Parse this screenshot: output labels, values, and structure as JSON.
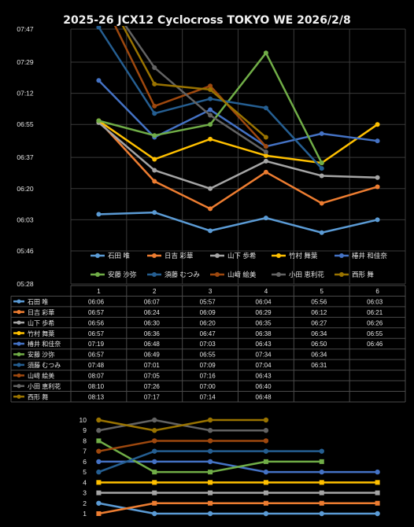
{
  "chart_data": [
    {
      "type": "line",
      "title": "2025-26 JCX12 Cyclocross TOKYO WE 2026/2/8",
      "y_unit": "mm:ss",
      "yticks": [
        "05:28",
        "05:46",
        "06:03",
        "06:20",
        "06:37",
        "06:55",
        "07:12",
        "07:29",
        "07:47"
      ],
      "ylim": [
        "05:28",
        "07:47"
      ],
      "categories": [
        "1",
        "2",
        "3",
        "4",
        "5",
        "6"
      ],
      "grid": true,
      "legend_position": "bottom",
      "series": [
        {
          "name": "石田 唯",
          "color": "#5b9bd5",
          "values": [
            "06:06",
            "06:07",
            "05:57",
            "06:04",
            "05:56",
            "06:03"
          ]
        },
        {
          "name": "日吉 彩華",
          "color": "#ed7d31",
          "values": [
            "06:57",
            "06:24",
            "06:09",
            "06:29",
            "06:12",
            "06:21"
          ]
        },
        {
          "name": "山下 歩希",
          "color": "#a5a5a5",
          "values": [
            "06:56",
            "06:30",
            "06:20",
            "06:35",
            "06:27",
            "06:26"
          ]
        },
        {
          "name": "竹村 舞葉",
          "color": "#ffc000",
          "values": [
            "06:57",
            "06:36",
            "06:47",
            "06:38",
            "06:34",
            "06:55"
          ]
        },
        {
          "name": "椿井 和佳奈",
          "color": "#4472c4",
          "values": [
            "07:19",
            "06:48",
            "07:03",
            "06:43",
            "06:50",
            "06:46"
          ]
        },
        {
          "name": "安藤 沙弥",
          "color": "#70ad47",
          "values": [
            "06:57",
            "06:49",
            "06:55",
            "07:34",
            "06:34",
            null
          ]
        },
        {
          "name": "須藤 むつみ",
          "color": "#255e91",
          "values": [
            "07:48",
            "07:01",
            "07:09",
            "07:04",
            "06:31",
            null
          ]
        },
        {
          "name": "山﨑 絵美",
          "color": "#9e480e",
          "values": [
            "08:07",
            "07:05",
            "07:16",
            "06:43",
            null,
            null
          ]
        },
        {
          "name": "小田 恵利花",
          "color": "#636363",
          "values": [
            "08:10",
            "07:26",
            "07:00",
            "06:40",
            null,
            null
          ]
        },
        {
          "name": "西形 舞",
          "color": "#997300",
          "values": [
            "08:13",
            "07:17",
            "07:14",
            "06:48",
            null,
            null
          ]
        }
      ]
    },
    {
      "type": "line",
      "title": "",
      "yticks": [
        "1",
        "2",
        "3",
        "4",
        "5",
        "6",
        "7",
        "8",
        "9",
        "10"
      ],
      "ylim": [
        1,
        10
      ],
      "categories": [
        "1",
        "2",
        "3",
        "4",
        "5",
        "6"
      ],
      "grid": false,
      "series": [
        {
          "color": "#5b9bd5",
          "values": [
            2,
            1,
            1,
            1,
            1,
            1
          ]
        },
        {
          "color": "#ed7d31",
          "values": [
            1,
            2,
            2,
            2,
            2,
            2
          ]
        },
        {
          "color": "#a5a5a5",
          "values": [
            3,
            3,
            3,
            3,
            3,
            3
          ]
        },
        {
          "color": "#ffc000",
          "values": [
            4,
            4,
            4,
            4,
            4,
            4
          ]
        },
        {
          "color": "#4472c4",
          "values": [
            6,
            6,
            6,
            5,
            5,
            5
          ]
        },
        {
          "color": "#70ad47",
          "values": [
            8,
            5,
            5,
            6,
            6,
            null
          ]
        },
        {
          "color": "#255e91",
          "values": [
            5,
            7,
            7,
            7,
            7,
            null
          ]
        },
        {
          "color": "#9e480e",
          "values": [
            7,
            8,
            8,
            8,
            null,
            null
          ]
        },
        {
          "color": "#636363",
          "values": [
            9,
            10,
            9,
            9,
            null,
            null
          ]
        },
        {
          "color": "#997300",
          "values": [
            10,
            9,
            10,
            10,
            null,
            null
          ]
        }
      ]
    }
  ]
}
